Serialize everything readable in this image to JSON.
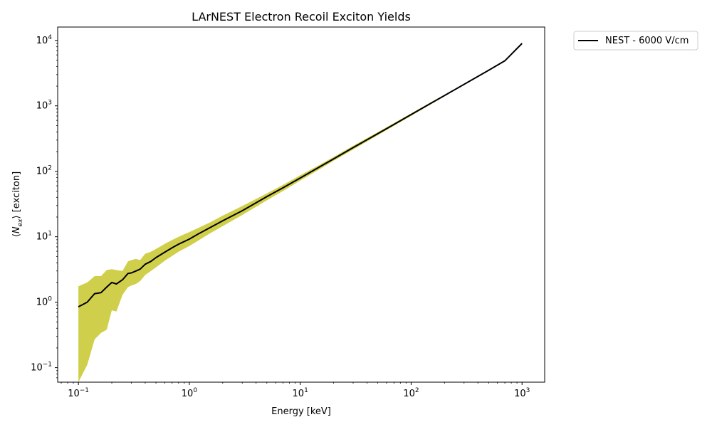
{
  "chart_data": {
    "type": "line",
    "title": "LArNEST Electron Recoil Exciton Yields",
    "xlabel": "Energy [keV]",
    "ylabel": "⟨N_ex⟩ [exciton]",
    "x_scale": "log",
    "y_scale": "log",
    "xlim": [
      0.065,
      1600
    ],
    "ylim": [
      0.06,
      16000
    ],
    "x_ticks": [
      {
        "base": "10",
        "exp": "−1",
        "value": 0.1
      },
      {
        "base": "10",
        "exp": "0",
        "value": 1
      },
      {
        "base": "10",
        "exp": "1",
        "value": 10
      },
      {
        "base": "10",
        "exp": "2",
        "value": 100
      },
      {
        "base": "10",
        "exp": "3",
        "value": 1000
      }
    ],
    "y_ticks": [
      {
        "base": "10",
        "exp": "−1",
        "value": 0.1
      },
      {
        "base": "10",
        "exp": "0",
        "value": 1
      },
      {
        "base": "10",
        "exp": "1",
        "value": 10
      },
      {
        "base": "10",
        "exp": "2",
        "value": 100
      },
      {
        "base": "10",
        "exp": "3",
        "value": 1000
      },
      {
        "base": "10",
        "exp": "4",
        "value": 10000
      }
    ],
    "legend_placement": "outside-top-right",
    "series": [
      {
        "name": "NEST - 6000 V/cm",
        "color": "#000000",
        "x": [
          0.1,
          0.12,
          0.14,
          0.16,
          0.18,
          0.2,
          0.22,
          0.25,
          0.28,
          0.3,
          0.33,
          0.36,
          0.4,
          0.45,
          0.5,
          0.6,
          0.7,
          0.8,
          1.0,
          1.2,
          1.5,
          2,
          3,
          5,
          7,
          10,
          15,
          20,
          30,
          50,
          70,
          100,
          150,
          200,
          300,
          500,
          700,
          1000
        ],
        "values": [
          0.85,
          1.0,
          1.35,
          1.4,
          1.7,
          2.0,
          1.9,
          2.2,
          2.75,
          2.8,
          3.0,
          3.2,
          3.8,
          4.2,
          4.8,
          5.8,
          6.8,
          7.7,
          9.2,
          11.0,
          13.5,
          17.5,
          25,
          41,
          56,
          79,
          117,
          155,
          230,
          375,
          520,
          735,
          1090,
          1440,
          2130,
          3500,
          4880,
          9000
        ]
      }
    ],
    "band": {
      "color": "#c8c72c",
      "x": [
        0.1,
        0.12,
        0.14,
        0.16,
        0.18,
        0.2,
        0.22,
        0.25,
        0.28,
        0.3,
        0.33,
        0.36,
        0.4,
        0.45,
        0.5,
        0.6,
        0.7,
        0.8,
        1.0,
        1.2,
        1.5,
        2,
        3,
        5,
        7,
        10,
        15,
        20,
        30,
        50,
        70,
        100,
        150,
        200,
        300,
        500,
        700,
        1000
      ],
      "lower": [
        0.06,
        0.11,
        0.27,
        0.34,
        0.38,
        0.75,
        0.72,
        1.3,
        1.7,
        1.8,
        1.9,
        2.1,
        2.6,
        3.0,
        3.4,
        4.3,
        5.1,
        5.9,
        7.2,
        8.7,
        11.0,
        14.5,
        21.5,
        36,
        50,
        72,
        108,
        145,
        215,
        355,
        495,
        705,
        1050,
        1400,
        2080,
        3420,
        4790,
        8850
      ],
      "upper": [
        1.75,
        2.0,
        2.5,
        2.5,
        3.1,
        3.2,
        3.1,
        3.0,
        4.2,
        4.4,
        4.6,
        4.4,
        5.5,
        5.9,
        6.5,
        7.8,
        8.9,
        10.0,
        11.8,
        13.6,
        16.2,
        21.0,
        29.5,
        46,
        62,
        87,
        126,
        166,
        245,
        395,
        545,
        765,
        1130,
        1480,
        2180,
        3580,
        4970,
        9150
      ]
    }
  }
}
